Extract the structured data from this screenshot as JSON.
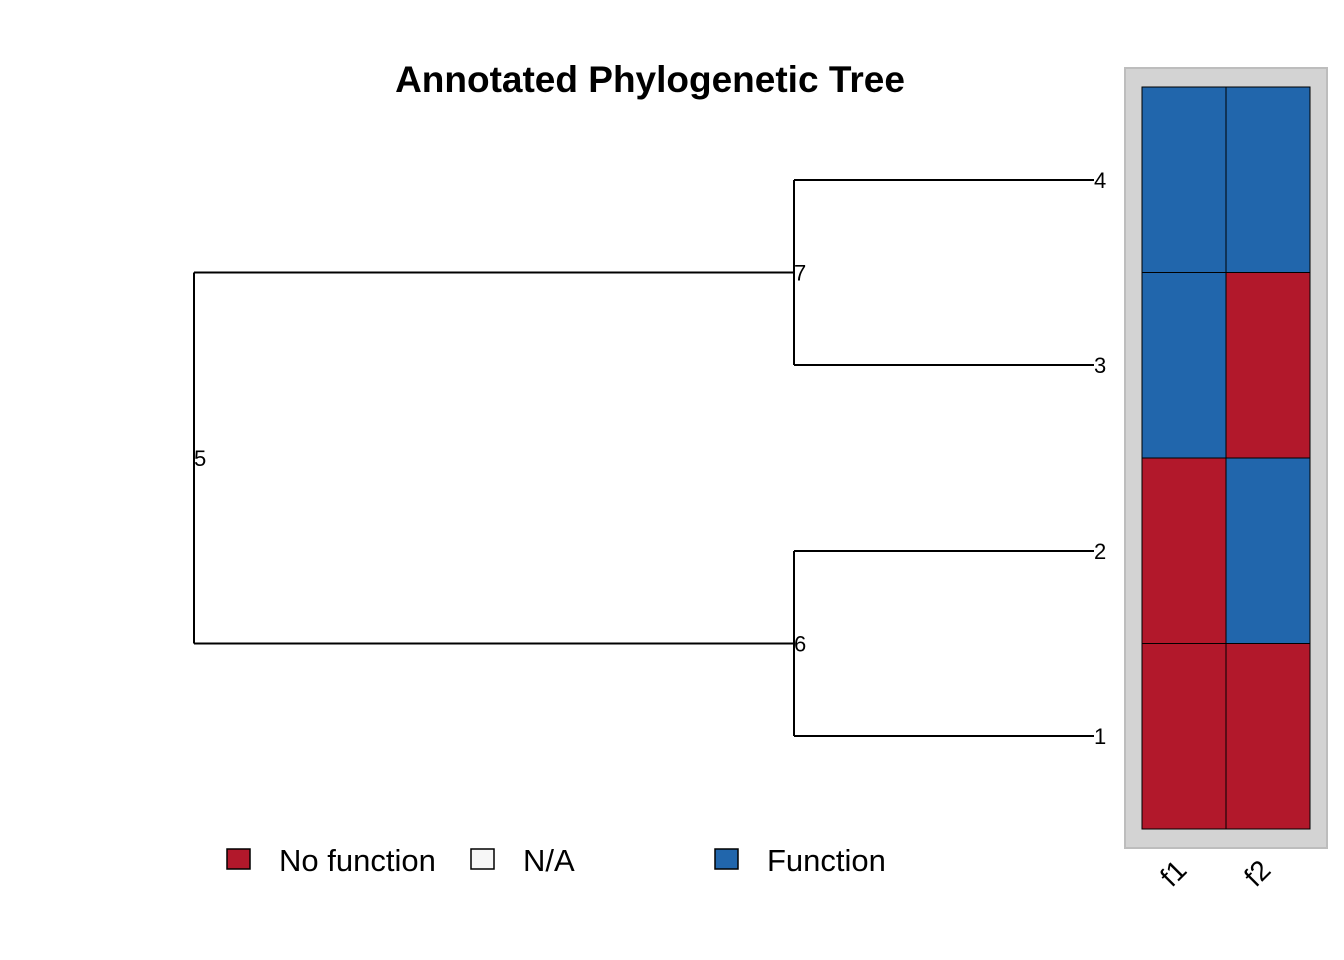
{
  "chart_data": {
    "type": "heatmap",
    "title": "Annotated Phylogenetic Tree",
    "tree": {
      "leaves": [
        "4",
        "3",
        "2",
        "1"
      ],
      "internal_nodes": [
        {
          "label": "5",
          "children": [
            "7",
            "6"
          ]
        },
        {
          "label": "7",
          "children": [
            "4",
            "3"
          ]
        },
        {
          "label": "6",
          "children": [
            "2",
            "1"
          ]
        }
      ]
    },
    "annotation_columns": [
      "f1",
      "f2"
    ],
    "annotation_rows": [
      "4",
      "3",
      "2",
      "1"
    ],
    "annotation_matrix": [
      [
        "Function",
        "Function"
      ],
      [
        "Function",
        "No function"
      ],
      [
        "No function",
        "Function"
      ],
      [
        "No function",
        "No function"
      ]
    ],
    "legend": [
      {
        "label": "No function",
        "color": "#B2182B"
      },
      {
        "label": "N/A",
        "color": "#F7F7F7"
      },
      {
        "label": "Function",
        "color": "#2166AC"
      }
    ],
    "panel_background": "#D3D3D3"
  }
}
